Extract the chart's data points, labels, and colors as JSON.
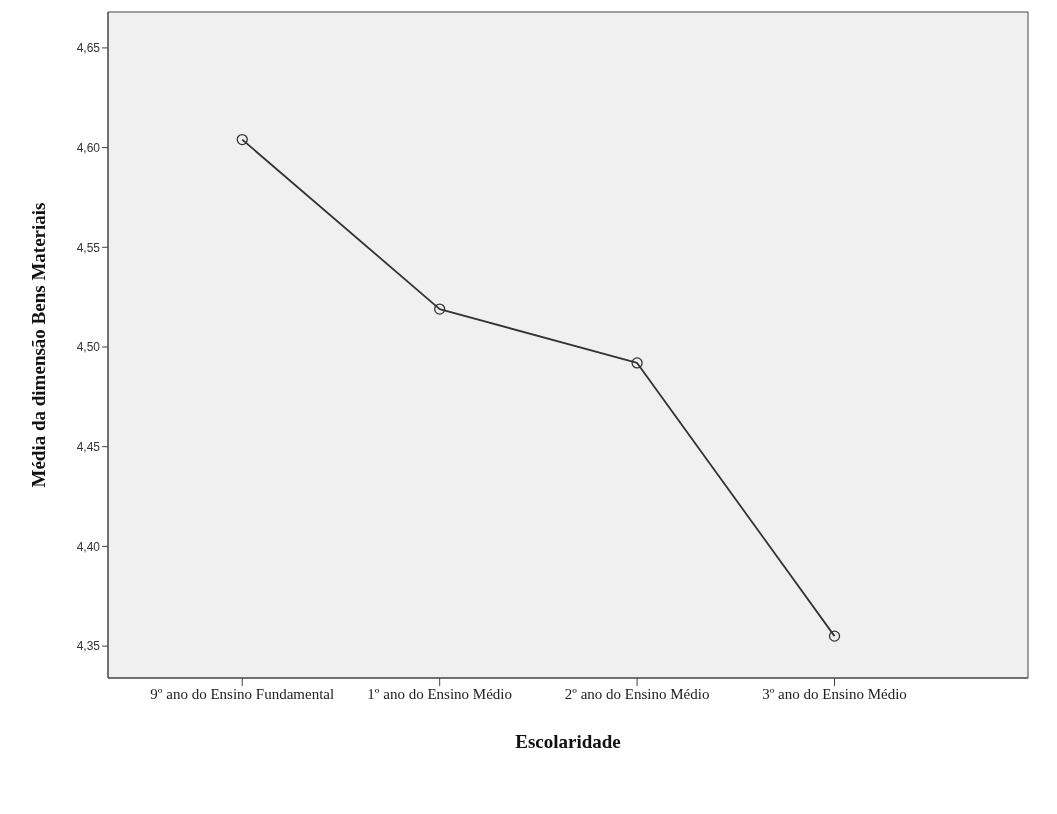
{
  "chart_data": {
    "type": "line",
    "xlabel": "Escolaridade",
    "ylabel": "Média da dimensão Bens Materiais",
    "categories": [
      "9º ano do Ensino Fundamental",
      "1º ano do Ensino Médio",
      "2º ano do Ensino Médio",
      "3º ano do Ensino Médio"
    ],
    "series": [
      {
        "color": "#333333",
        "values": [
          4.604,
          4.519,
          4.492,
          4.355
        ]
      }
    ],
    "ylim": [
      4.334,
      4.668
    ],
    "yticks": [
      {
        "value": 4.35,
        "label": "4,35"
      },
      {
        "value": 4.4,
        "label": "4,40"
      },
      {
        "value": 4.45,
        "label": "4,45"
      },
      {
        "value": 4.5,
        "label": "4,50"
      },
      {
        "value": 4.55,
        "label": "4,55"
      },
      {
        "value": 4.6,
        "label": "4,60"
      },
      {
        "value": 4.65,
        "label": "4,65"
      }
    ],
    "grid": false,
    "legend": false,
    "marker": "circle",
    "line_style": "solid"
  }
}
